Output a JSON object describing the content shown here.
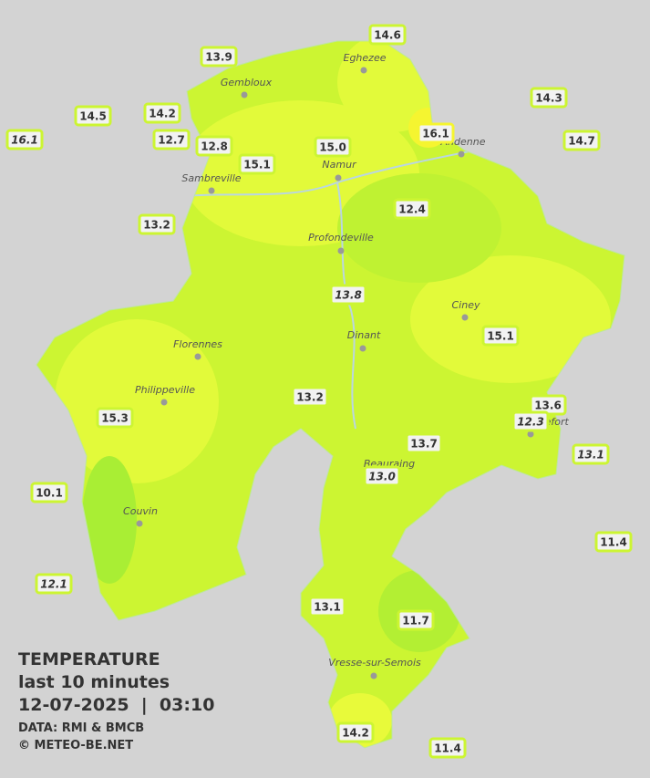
{
  "legend": {
    "title": "TEMPERATURE",
    "subtitle": "last 10 minutes",
    "datetime": "12-07-2025  |  03:10",
    "source": "DATA: RMI & BMCB",
    "credit": "© METEO-BE.NET"
  },
  "cities": [
    "Eghezee",
    "Gembloux",
    "Andenne",
    "Namur",
    "Sambreville",
    "Profondeville",
    "Ciney",
    "Florennes",
    "Dinant",
    "Philippeville",
    "Rochefort",
    "Beauraing",
    "Couvin",
    "Vresse-sur-Semois"
  ],
  "stations": [
    {
      "label": "14.6",
      "italic": false
    },
    {
      "label": "13.9",
      "italic": false
    },
    {
      "label": "14.3",
      "italic": false
    },
    {
      "label": "14.5",
      "italic": false
    },
    {
      "label": "14.2",
      "italic": false
    },
    {
      "label": "16.1",
      "italic": true
    },
    {
      "label": "12.7",
      "italic": false
    },
    {
      "label": "12.8",
      "italic": false
    },
    {
      "label": "16.1",
      "italic": false
    },
    {
      "label": "14.7",
      "italic": false
    },
    {
      "label": "15.0",
      "italic": false
    },
    {
      "label": "15.1",
      "italic": false
    },
    {
      "label": "12.4",
      "italic": false
    },
    {
      "label": "13.2",
      "italic": false
    },
    {
      "label": "13.8",
      "italic": true
    },
    {
      "label": "15.1",
      "italic": false
    },
    {
      "label": "13.2",
      "italic": false
    },
    {
      "label": "13.6",
      "italic": false
    },
    {
      "label": "12.3",
      "italic": true
    },
    {
      "label": "15.3",
      "italic": false
    },
    {
      "label": "13.7",
      "italic": false
    },
    {
      "label": "13.1",
      "italic": true
    },
    {
      "label": "13.0",
      "italic": true
    },
    {
      "label": "10.1",
      "italic": false
    },
    {
      "label": "11.4",
      "italic": false
    },
    {
      "label": "12.1",
      "italic": true
    },
    {
      "label": "13.1",
      "italic": false
    },
    {
      "label": "11.7",
      "italic": false
    },
    {
      "label": "14.2",
      "italic": false
    },
    {
      "label": "11.4",
      "italic": false
    }
  ]
}
